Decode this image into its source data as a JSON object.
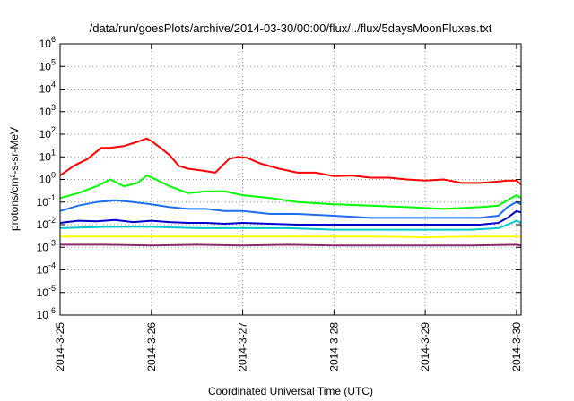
{
  "chart_data": {
    "type": "line",
    "title": "/data/run/goesPlots/archive/2014-03-30/00:00/flux/../flux/5daysMoonFluxes.txt",
    "xlabel": "Coordinated Universal Time (UTC)",
    "ylabel": "protons/cm²-s-sr-MeV",
    "y_scale": "log",
    "ylim": [
      1e-06,
      1000000.0
    ],
    "xlim_days": [
      0,
      5.05
    ],
    "x_ticks": [
      {
        "label": "2014-3-25",
        "day": 0
      },
      {
        "label": "2014-3-26",
        "day": 1
      },
      {
        "label": "2014-3-27",
        "day": 2
      },
      {
        "label": "2014-3-28",
        "day": 3
      },
      {
        "label": "2014-3-29",
        "day": 4
      },
      {
        "label": "2014-3-30",
        "day": 5
      }
    ],
    "y_ticks": [
      {
        "label_base": "10",
        "label_exp": "-6",
        "value": 1e-06
      },
      {
        "label_base": "10",
        "label_exp": "-5",
        "value": 1e-05
      },
      {
        "label_base": "10",
        "label_exp": "-4",
        "value": 0.0001
      },
      {
        "label_base": "10",
        "label_exp": "-3",
        "value": 0.001
      },
      {
        "label_base": "10",
        "label_exp": "-2",
        "value": 0.01
      },
      {
        "label_base": "10",
        "label_exp": "-1",
        "value": 0.1
      },
      {
        "label_base": "10",
        "label_exp": "0",
        "value": 1
      },
      {
        "label_base": "10",
        "label_exp": "1",
        "value": 10
      },
      {
        "label_base": "10",
        "label_exp": "2",
        "value": 100
      },
      {
        "label_base": "10",
        "label_exp": "3",
        "value": 1000
      },
      {
        "label_base": "10",
        "label_exp": "4",
        "value": 10000
      },
      {
        "label_base": "10",
        "label_exp": "5",
        "value": 100000
      },
      {
        "label_base": "10",
        "label_exp": "6",
        "value": 1000000
      }
    ],
    "grid": true,
    "series": [
      {
        "color": "#ff0000",
        "x": [
          0,
          0.15,
          0.3,
          0.45,
          0.55,
          0.7,
          0.8,
          0.9,
          0.95,
          1.0,
          1.1,
          1.2,
          1.3,
          1.4,
          1.55,
          1.7,
          1.85,
          1.95,
          2.05,
          2.2,
          2.4,
          2.6,
          2.8,
          3.0,
          3.2,
          3.4,
          3.6,
          3.8,
          4.0,
          4.2,
          4.4,
          4.6,
          4.8,
          4.9,
          5.0,
          5.05
        ],
        "y": [
          1.5,
          4,
          8,
          25,
          25,
          30,
          40,
          55,
          65,
          50,
          25,
          12,
          4,
          3,
          2.5,
          2,
          8,
          10,
          9,
          5,
          3,
          2,
          2,
          1.4,
          1.5,
          1.2,
          1.2,
          1,
          0.9,
          1,
          0.7,
          0.7,
          0.8,
          0.9,
          0.9,
          0.6
        ]
      },
      {
        "color": "#00ff00",
        "x": [
          0,
          0.2,
          0.4,
          0.55,
          0.7,
          0.85,
          0.95,
          1.05,
          1.2,
          1.4,
          1.6,
          1.8,
          2.0,
          2.3,
          2.6,
          3.0,
          3.4,
          3.8,
          4.2,
          4.6,
          4.8,
          4.9,
          5.0,
          5.05
        ],
        "y": [
          0.15,
          0.25,
          0.5,
          1.0,
          0.5,
          0.7,
          1.5,
          1.0,
          0.5,
          0.25,
          0.3,
          0.3,
          0.2,
          0.15,
          0.1,
          0.08,
          0.07,
          0.06,
          0.05,
          0.06,
          0.07,
          0.12,
          0.2,
          0.15
        ]
      },
      {
        "color": "#1e6ef0",
        "x": [
          0,
          0.2,
          0.4,
          0.6,
          0.8,
          1.0,
          1.2,
          1.4,
          1.6,
          1.8,
          2.0,
          2.3,
          2.6,
          3.0,
          3.4,
          3.8,
          4.2,
          4.6,
          4.8,
          4.9,
          5.0,
          5.05
        ],
        "y": [
          0.04,
          0.07,
          0.1,
          0.12,
          0.1,
          0.08,
          0.06,
          0.05,
          0.05,
          0.04,
          0.04,
          0.03,
          0.03,
          0.025,
          0.02,
          0.02,
          0.02,
          0.02,
          0.025,
          0.06,
          0.1,
          0.08
        ]
      },
      {
        "color": "#0000cc",
        "x": [
          0,
          0.2,
          0.4,
          0.6,
          0.8,
          1.0,
          1.2,
          1.4,
          1.6,
          1.8,
          2.0,
          2.3,
          2.6,
          3.0,
          3.4,
          3.8,
          4.2,
          4.6,
          4.8,
          4.9,
          5.0,
          5.05
        ],
        "y": [
          0.012,
          0.015,
          0.014,
          0.016,
          0.013,
          0.015,
          0.013,
          0.012,
          0.012,
          0.011,
          0.012,
          0.011,
          0.01,
          0.01,
          0.01,
          0.01,
          0.01,
          0.01,
          0.012,
          0.02,
          0.04,
          0.035
        ]
      },
      {
        "color": "#00c8c8",
        "x": [
          0,
          0.5,
          1.0,
          1.5,
          2.0,
          2.5,
          3.0,
          3.5,
          4.0,
          4.5,
          4.8,
          4.9,
          5.0,
          5.05
        ],
        "y": [
          0.007,
          0.008,
          0.008,
          0.007,
          0.007,
          0.007,
          0.006,
          0.006,
          0.006,
          0.006,
          0.007,
          0.01,
          0.015,
          0.012
        ]
      },
      {
        "color": "#ffff00",
        "x": [
          0,
          0.5,
          1.0,
          1.5,
          2.0,
          2.5,
          3.0,
          3.5,
          4.0,
          4.5,
          5.0,
          5.05
        ],
        "y": [
          0.003,
          0.003,
          0.003,
          0.003,
          0.003,
          0.003,
          0.003,
          0.003,
          0.0028,
          0.003,
          0.003,
          0.003
        ]
      },
      {
        "color": "#8b2a6e",
        "x": [
          0,
          0.5,
          1.0,
          1.5,
          2.0,
          2.5,
          3.0,
          3.5,
          4.0,
          4.5,
          5.0,
          5.05
        ],
        "y": [
          0.0013,
          0.0013,
          0.0012,
          0.0013,
          0.0012,
          0.0013,
          0.0012,
          0.0012,
          0.0012,
          0.0012,
          0.0013,
          0.0012
        ]
      }
    ]
  }
}
